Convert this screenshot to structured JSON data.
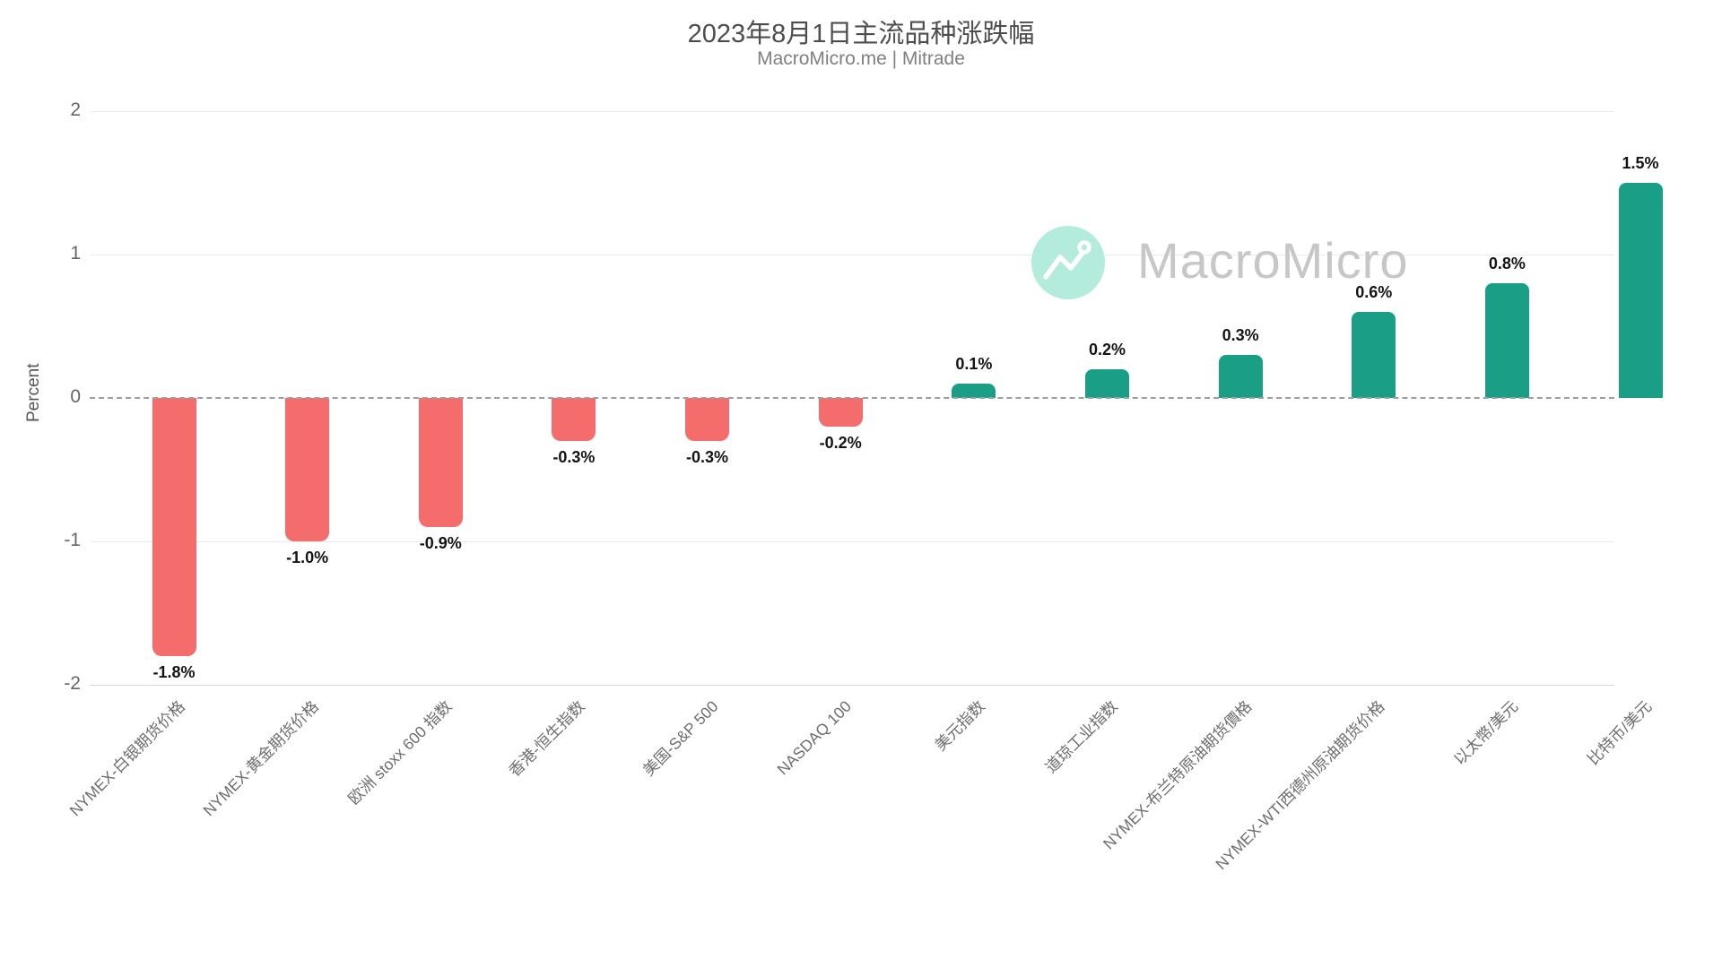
{
  "header": {
    "title": "2023年8月1日主流品种涨跌幅",
    "subtitle": "MacroMicro.me | Mitrade"
  },
  "watermark": {
    "brand_text": "MacroMicro",
    "logo_icon": "macromicro-trend-m-icon",
    "circle_color": "#b3ecdc",
    "text_color": "#c7c7c7"
  },
  "chart_data": {
    "type": "bar",
    "title": "2023年8月1日主流品种涨跌幅",
    "subtitle": "MacroMicro.me | Mitrade",
    "xlabel": "",
    "ylabel": "Percent",
    "ylim": [
      -2,
      2
    ],
    "yticks": [
      2,
      1,
      0,
      -1,
      -2
    ],
    "grid": "horizontal-light",
    "zero_line": "dashed-gray",
    "legend": "none",
    "categories": [
      "NYMEX-白银期货价格",
      "NYMEX-黄金期货价格",
      "欧洲 stoxx 600 指数",
      "香港-恒生指数",
      "美国-S&P 500",
      "NASDAQ 100",
      "美元指数",
      "道琼工业指数",
      "NYMEX-布兰特原油期货價格",
      "NYMEX-WTI西德州原油期货价格",
      "以太幣/美元",
      "比特币/美元"
    ],
    "values": [
      -1.8,
      -1.0,
      -0.9,
      -0.3,
      -0.3,
      -0.2,
      0.1,
      0.2,
      0.3,
      0.6,
      0.8,
      1.5
    ],
    "value_labels": [
      "-1.8%",
      "-1.0%",
      "-0.9%",
      "-0.3%",
      "-0.3%",
      "-0.2%",
      "0.1%",
      "0.2%",
      "0.3%",
      "0.6%",
      "0.8%",
      "1.5%"
    ],
    "colors": {
      "positive": "#1b9e86",
      "negative": "#f56c6c"
    }
  }
}
